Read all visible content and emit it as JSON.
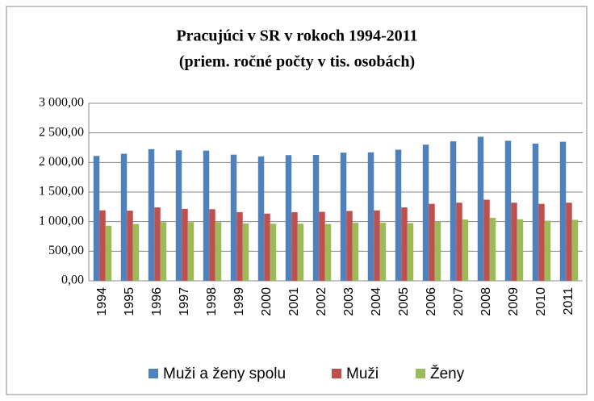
{
  "chart_data": {
    "type": "bar",
    "title": "Pracujúci v SR v rokoch 1994-2011",
    "subtitle": "(priem. ročné počty v tis. osobách)",
    "categories": [
      "1994",
      "1995",
      "1996",
      "1997",
      "1998",
      "1999",
      "2000",
      "2001",
      "2002",
      "2003",
      "2004",
      "2005",
      "2006",
      "2007",
      "2008",
      "2009",
      "2010",
      "2011"
    ],
    "series": [
      {
        "name": "Muži a ženy spolu",
        "color": "#4f81bd",
        "values": [
          2110,
          2147,
          2225,
          2206,
          2199,
          2132,
          2102,
          2124,
          2127,
          2165,
          2170,
          2216,
          2301,
          2357,
          2434,
          2366,
          2318,
          2351
        ]
      },
      {
        "name": "Muži",
        "color": "#c0504d",
        "values": [
          1190,
          1185,
          1240,
          1215,
          1210,
          1160,
          1135,
          1160,
          1165,
          1180,
          1190,
          1240,
          1300,
          1320,
          1370,
          1320,
          1300,
          1320
        ]
      },
      {
        "name": "Ženy",
        "color": "#9bbb59",
        "values": [
          930,
          960,
          990,
          990,
          990,
          970,
          965,
          965,
          960,
          980,
          980,
          975,
          1000,
          1035,
          1065,
          1040,
          1015,
          1030
        ]
      }
    ],
    "ylim": [
      0,
      3000
    ],
    "yticks": [
      {
        "value": 0,
        "label": "0,00"
      },
      {
        "value": 500,
        "label": "500,00"
      },
      {
        "value": 1000,
        "label": "1 000,00"
      },
      {
        "value": 1500,
        "label": "1 500,00"
      },
      {
        "value": 2000,
        "label": "2 000,00"
      },
      {
        "value": 2500,
        "label": "2 500,00"
      },
      {
        "value": 3000,
        "label": "3 000,00"
      }
    ],
    "grid": true,
    "legend": "bottom"
  }
}
